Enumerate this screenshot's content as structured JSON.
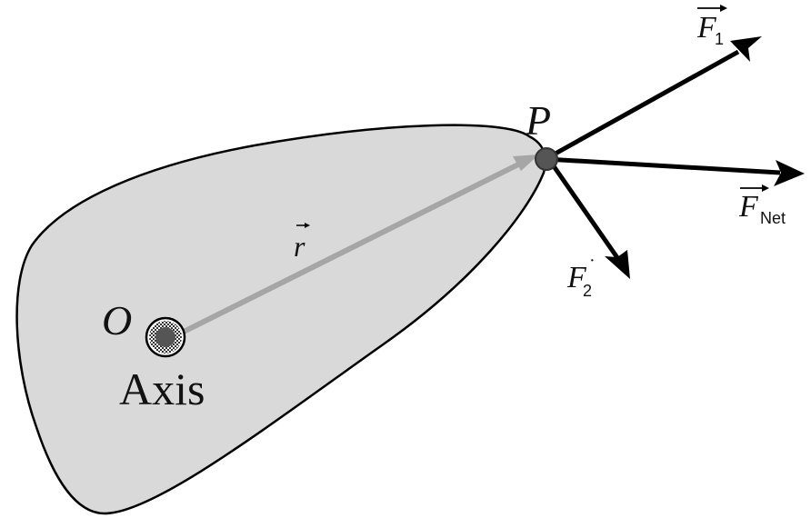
{
  "labels": {
    "origin": "O",
    "axis": "Axis",
    "point": "P",
    "position_vector": "r",
    "force1_symbol": "F",
    "force1_subscript": "1",
    "force2_symbol": "F",
    "force2_subscript": "2",
    "force2_mark": "·",
    "net_force_symbol": "F",
    "net_force_subscript": "Net"
  },
  "colors": {
    "body_fill": "#d9d9d9",
    "body_outline": "#000000",
    "position_vector": "#a6a6a6",
    "force_arrows": "#000000",
    "point_marker": "#555555"
  }
}
